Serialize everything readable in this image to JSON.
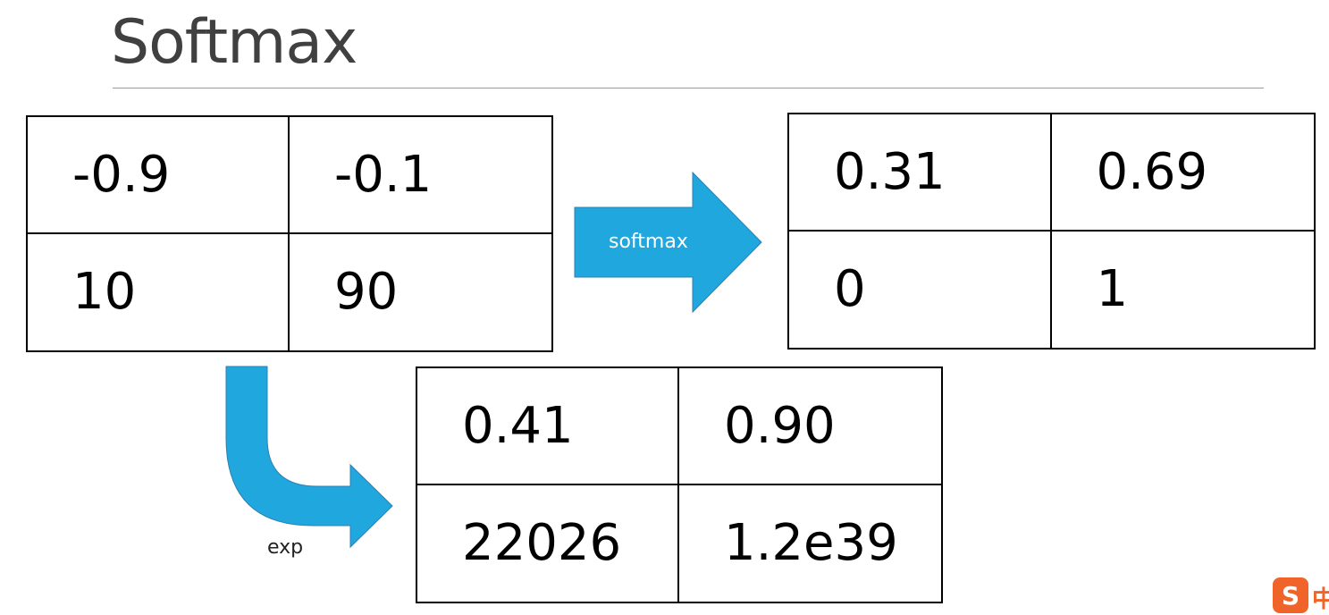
{
  "slide": {
    "title": "Softmax"
  },
  "tables": {
    "input": {
      "cells": [
        [
          "-0.9",
          "-0.1"
        ],
        [
          "10",
          "90"
        ]
      ]
    },
    "output": {
      "cells": [
        [
          "0.31",
          "0.69"
        ],
        [
          "0",
          "1"
        ]
      ]
    },
    "exp": {
      "cells": [
        [
          "0.41",
          "0.90"
        ],
        [
          "22026",
          "1.2e39"
        ]
      ]
    }
  },
  "arrows": {
    "softmax_label": "softmax",
    "exp_label": "exp",
    "fill_color": "#1fa7de",
    "stroke_color": "#2f7fb0"
  },
  "tray": {
    "ime_icon": "sogou-ime-icon",
    "ime_glyph": "S",
    "ime_mode": "中"
  }
}
